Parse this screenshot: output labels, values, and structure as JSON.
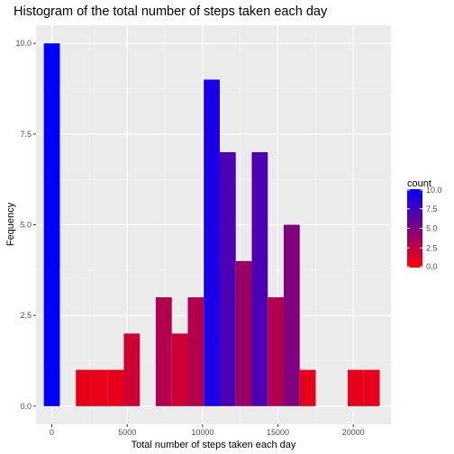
{
  "chart_data": {
    "type": "bar",
    "title": "Histogram of the total number of steps taken each day",
    "xlabel": "Total number of steps taken each day",
    "ylabel": "Fequency",
    "xlim": [
      -1050,
      22500
    ],
    "ylim": [
      -0.5,
      10.5
    ],
    "bin_width": 1061,
    "bins": [
      {
        "x": 0,
        "count": 10
      },
      {
        "x": 3184,
        "count": 1
      },
      {
        "x": 2123,
        "count": 1
      },
      {
        "x": 4245,
        "count": 1
      },
      {
        "x": 5306,
        "count": 2
      },
      {
        "x": 7429,
        "count": 3
      },
      {
        "x": 8490,
        "count": 2
      },
      {
        "x": 9551,
        "count": 3
      },
      {
        "x": 10612,
        "count": 9
      },
      {
        "x": 11673,
        "count": 7
      },
      {
        "x": 12735,
        "count": 4
      },
      {
        "x": 13796,
        "count": 7
      },
      {
        "x": 14857,
        "count": 3
      },
      {
        "x": 15918,
        "count": 5
      },
      {
        "x": 16980,
        "count": 1
      },
      {
        "x": 20163,
        "count": 1
      },
      {
        "x": 21224,
        "count": 1
      }
    ],
    "x_ticks": [
      {
        "value": 0,
        "label": "0"
      },
      {
        "value": 5000,
        "label": "5000"
      },
      {
        "value": 10000,
        "label": "10000"
      },
      {
        "value": 15000,
        "label": "15000"
      },
      {
        "value": 20000,
        "label": "20000"
      }
    ],
    "y_ticks": [
      {
        "value": 0,
        "label": "0.0"
      },
      {
        "value": 2.5,
        "label": "2.5"
      },
      {
        "value": 5,
        "label": "5.0"
      },
      {
        "value": 7.5,
        "label": "7.5"
      },
      {
        "value": 10,
        "label": "10.0"
      }
    ],
    "grid": true,
    "legend": {
      "title": "count",
      "position": "right",
      "range": [
        0,
        10
      ],
      "low_color": "#ff0000",
      "high_color": "#0000ff",
      "ticks": [
        {
          "value": 10,
          "label": "10.0"
        },
        {
          "value": 7.5,
          "label": "7.5"
        },
        {
          "value": 5,
          "label": "5.0"
        },
        {
          "value": 2.5,
          "label": "2.5"
        },
        {
          "value": 0,
          "label": "0.0"
        }
      ]
    },
    "colors": {
      "panel_background": "#ebebeb",
      "grid_major": "#ffffff",
      "grid_minor": "#f5f5f5"
    }
  }
}
